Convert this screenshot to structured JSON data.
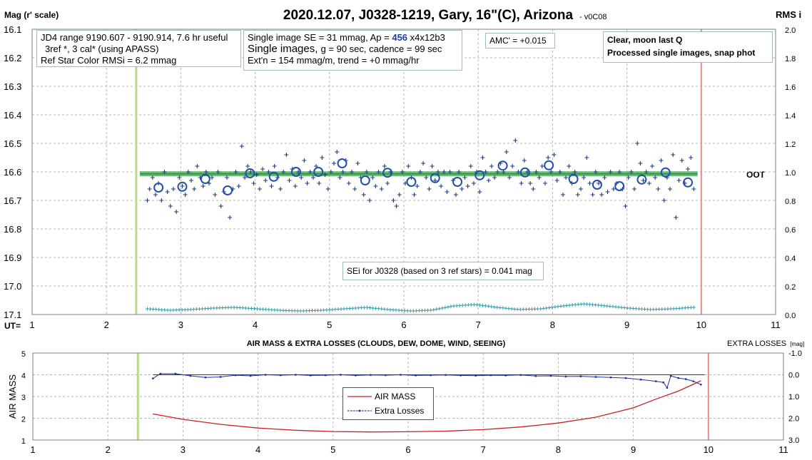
{
  "top_chart": {
    "title": "2020.12.07, J0328-1219, Gary, 16\"(C), Arizona",
    "version": "- v0C08",
    "left_axis_label": "Mag (r' scale)",
    "right_axis_label": "RMS i",
    "x_label": "UT=",
    "x_ticks": [
      "1",
      "2",
      "3",
      "4",
      "5",
      "6",
      "7",
      "8",
      "9",
      "10",
      "11"
    ],
    "y_left_ticks": [
      "16.1",
      "16.2",
      "16.3",
      "16.4",
      "16.5",
      "16.6",
      "16.7",
      "16.8",
      "16.9",
      "17.0",
      "17.1"
    ],
    "y_right_ticks": [
      "2.0",
      "1.8",
      "1.6",
      "1.4",
      "1.2",
      "1.0",
      "0.8",
      "0.6",
      "0.4",
      "0.2",
      "0.0"
    ],
    "info1": {
      "line1": "JD4 range 9190.607 - 9190.914, 7.6 hr useful",
      "line2": "3ref *, 3 cal* (using APASS)",
      "line3": "Ref Star Color RMSi = 6.2 mmag"
    },
    "info2": {
      "line1_pre": "Single image SE = 31 mmag, Ap = ",
      "line1_ap": "456",
      "line1_post": " x4x12b3",
      "line2_pre": "Single images, ",
      "line2_post": "g = 90 sec, cadence = 99 sec",
      "line3": "Ext'n = 154 mmag/m, trend = +0 mmag/hr"
    },
    "amc": "AMC' = +0.015",
    "conditions": {
      "line1": "Clear, moon last Q",
      "line2": "Processed single images, snap phot"
    },
    "sei": "SEi for J0328 (based on 3 ref stars) = 0.041 mag",
    "oot_label": "OOT"
  },
  "bottom_chart": {
    "title": "AIR MASS & EXTRA LOSSES (CLOUDS, DEW, DOME, WIND, SEEING)",
    "left_axis_label": "AIR MASS",
    "right_axis_label": "EXTRA LOSSES",
    "right_axis_unit": "[mag]",
    "x_ticks": [
      "1",
      "2",
      "3",
      "4",
      "5",
      "6",
      "7",
      "8",
      "9",
      "10",
      "11"
    ],
    "y_left_ticks": [
      "5",
      "4",
      "3",
      "2",
      "1"
    ],
    "y_right_ticks": [
      "-1.0",
      "0.0",
      "1.0",
      "2.0",
      "3.0"
    ],
    "legend": {
      "airmass": "AIR MASS",
      "extra": "Extra Losses"
    }
  },
  "colors": {
    "single_points": "#1f3a7a",
    "circles": "#1f4fb0",
    "oot_band": "#3aa64a",
    "rms_points": "#3a9aa8",
    "green_line": "#b8d88a",
    "red_line": "#e88a8a",
    "airmass_curve": "#cc1f1f",
    "extra_losses": "#1f2faa"
  },
  "chart_data": [
    {
      "type": "scatter",
      "title": "2020.12.07, J0328-1219, Gary, 16\"(C), Arizona",
      "xlabel": "UT=",
      "ylabel": "Mag (r' scale)",
      "y2label": "RMS i",
      "xlim": [
        1,
        11
      ],
      "ylim": [
        17.1,
        16.1
      ],
      "y2lim": [
        0.0,
        2.0
      ],
      "grid": true,
      "start_marker_x": 2.4,
      "end_marker_x": 10.0,
      "oot_level": 16.607,
      "oot_range": [
        2.45,
        9.95
      ],
      "binned_means": {
        "x": [
          2.7,
          3.02,
          3.33,
          3.63,
          3.93,
          4.25,
          4.55,
          4.85,
          5.17,
          5.48,
          5.78,
          6.1,
          6.42,
          6.72,
          7.02,
          7.33,
          7.63,
          7.95,
          8.28,
          8.6,
          8.9,
          9.2,
          9.52,
          9.82
        ],
        "y": [
          16.655,
          16.652,
          16.625,
          16.665,
          16.605,
          16.617,
          16.6,
          16.6,
          16.57,
          16.63,
          16.603,
          16.635,
          16.622,
          16.635,
          16.612,
          16.578,
          16.602,
          16.577,
          16.625,
          16.645,
          16.65,
          16.627,
          16.602,
          16.637
        ]
      },
      "single_images": {
        "x": [
          2.55,
          2.58,
          2.62,
          2.66,
          2.7,
          2.74,
          2.78,
          2.82,
          2.86,
          2.9,
          2.94,
          2.98,
          3.02,
          3.06,
          3.1,
          3.14,
          3.18,
          3.22,
          3.26,
          3.3,
          3.34,
          3.38,
          3.42,
          3.46,
          3.5,
          3.54,
          3.58,
          3.62,
          3.66,
          3.7,
          3.74,
          3.78,
          3.82,
          3.86,
          3.9,
          3.94,
          3.98,
          4.02,
          4.06,
          4.1,
          4.14,
          4.18,
          4.22,
          4.26,
          4.3,
          4.34,
          4.38,
          4.42,
          4.46,
          4.5,
          4.54,
          4.58,
          4.62,
          4.66,
          4.7,
          4.74,
          4.78,
          4.82,
          4.86,
          4.9,
          4.94,
          4.98,
          5.02,
          5.06,
          5.1,
          5.14,
          5.18,
          5.22,
          5.26,
          5.3,
          5.34,
          5.38,
          5.42,
          5.46,
          5.5,
          5.54,
          5.58,
          5.62,
          5.66,
          5.7,
          5.74,
          5.78,
          5.82,
          5.86,
          5.9,
          5.94,
          5.98,
          6.02,
          6.06,
          6.1,
          6.14,
          6.18,
          6.22,
          6.26,
          6.3,
          6.34,
          6.38,
          6.42,
          6.46,
          6.5,
          6.54,
          6.58,
          6.62,
          6.66,
          6.7,
          6.74,
          6.78,
          6.82,
          6.86,
          6.9,
          6.94,
          6.98,
          7.02,
          7.06,
          7.1,
          7.14,
          7.18,
          7.22,
          7.26,
          7.3,
          7.34,
          7.38,
          7.42,
          7.46,
          7.5,
          7.54,
          7.58,
          7.62,
          7.66,
          7.7,
          7.74,
          7.78,
          7.82,
          7.86,
          7.9,
          7.94,
          7.98,
          8.02,
          8.06,
          8.1,
          8.14,
          8.18,
          8.22,
          8.26,
          8.3,
          8.34,
          8.38,
          8.42,
          8.46,
          8.5,
          8.54,
          8.58,
          8.62,
          8.66,
          8.7,
          8.74,
          8.78,
          8.82,
          8.86,
          8.9,
          8.94,
          8.98,
          9.02,
          9.06,
          9.1,
          9.14,
          9.18,
          9.22,
          9.26,
          9.3,
          9.34,
          9.38,
          9.42,
          9.46,
          9.5,
          9.54,
          9.58,
          9.62,
          9.66,
          9.7,
          9.74,
          9.78,
          9.82,
          9.86,
          9.9
        ],
        "y": [
          16.7,
          16.66,
          16.62,
          16.68,
          16.64,
          16.7,
          16.6,
          16.67,
          16.72,
          16.66,
          16.74,
          16.62,
          16.65,
          16.68,
          16.6,
          16.63,
          16.66,
          16.58,
          16.62,
          16.65,
          16.6,
          16.64,
          16.62,
          16.68,
          16.6,
          16.72,
          16.67,
          16.62,
          16.76,
          16.66,
          16.6,
          16.65,
          16.51,
          16.62,
          16.58,
          16.6,
          16.64,
          16.61,
          16.66,
          16.59,
          16.63,
          16.6,
          16.65,
          16.58,
          16.62,
          16.66,
          16.6,
          16.54,
          16.63,
          16.59,
          16.65,
          16.6,
          16.62,
          16.56,
          16.64,
          16.6,
          16.62,
          16.58,
          16.64,
          16.55,
          16.61,
          16.66,
          16.6,
          16.57,
          16.53,
          16.62,
          16.6,
          16.56,
          16.64,
          16.6,
          16.66,
          16.57,
          16.62,
          16.68,
          16.6,
          16.7,
          16.62,
          16.65,
          16.6,
          16.66,
          16.58,
          16.64,
          16.6,
          16.7,
          16.72,
          16.68,
          16.6,
          16.64,
          16.58,
          16.62,
          16.68,
          16.65,
          16.6,
          16.57,
          16.62,
          16.66,
          16.58,
          16.63,
          16.6,
          16.65,
          16.6,
          16.67,
          16.6,
          16.63,
          16.68,
          16.6,
          16.66,
          16.62,
          16.65,
          16.58,
          16.64,
          16.6,
          16.67,
          16.55,
          16.6,
          16.63,
          16.58,
          16.62,
          16.6,
          16.57,
          16.6,
          16.53,
          16.62,
          16.58,
          16.49,
          16.6,
          16.64,
          16.56,
          16.6,
          16.64,
          16.66,
          16.6,
          16.62,
          16.58,
          16.64,
          16.55,
          16.6,
          16.54,
          16.63,
          16.6,
          16.68,
          16.62,
          16.58,
          16.64,
          16.6,
          16.68,
          16.66,
          16.62,
          16.55,
          16.64,
          16.68,
          16.6,
          16.64,
          16.68,
          16.62,
          16.67,
          16.6,
          16.66,
          16.64,
          16.6,
          16.66,
          16.72,
          16.62,
          16.6,
          16.66,
          16.5,
          16.57,
          16.63,
          16.6,
          16.64,
          16.58,
          16.62,
          16.66,
          16.56,
          16.7,
          16.62,
          16.66,
          16.54,
          16.76,
          16.63,
          16.56,
          16.64,
          16.59,
          16.55,
          16.66
        ]
      },
      "rms_i": {
        "x_range": [
          2.55,
          9.9
        ],
        "values": [
          0.04,
          0.03,
          0.035,
          0.045,
          0.05,
          0.04,
          0.03,
          0.025,
          0.03,
          0.04,
          0.05,
          0.035,
          0.025,
          0.03,
          0.06,
          0.07,
          0.05,
          0.035,
          0.04,
          0.06,
          0.075,
          0.06,
          0.045,
          0.035,
          0.04,
          0.05
        ]
      }
    },
    {
      "type": "line",
      "title": "AIR MASS & EXTRA LOSSES (CLOUDS, DEW, DOME, WIND, SEEING)",
      "xlabel": "",
      "ylabel": "AIR MASS",
      "y2label": "EXTRA LOSSES [mag]",
      "xlim": [
        1,
        11
      ],
      "ylim": [
        1,
        5
      ],
      "y2lim": [
        3.0,
        -1.0
      ],
      "grid": true,
      "legend": "center",
      "series": [
        {
          "name": "AIR MASS",
          "x": [
            2.6,
            3.0,
            3.5,
            4.0,
            4.5,
            5.0,
            5.5,
            6.0,
            6.5,
            7.0,
            7.5,
            8.0,
            8.5,
            9.0,
            9.3,
            9.6,
            9.9
          ],
          "values": [
            2.2,
            1.95,
            1.72,
            1.55,
            1.45,
            1.39,
            1.37,
            1.38,
            1.41,
            1.48,
            1.6,
            1.78,
            2.05,
            2.48,
            2.88,
            3.25,
            3.72
          ]
        },
        {
          "name": "Extra Losses",
          "x": [
            2.6,
            2.7,
            2.9,
            3.1,
            3.3,
            3.5,
            3.7,
            3.9,
            4.1,
            4.3,
            4.5,
            4.7,
            4.9,
            5.1,
            5.3,
            5.5,
            5.7,
            5.9,
            6.1,
            6.3,
            6.5,
            6.7,
            6.9,
            7.1,
            7.3,
            7.5,
            7.7,
            7.9,
            8.1,
            8.3,
            8.5,
            8.7,
            8.9,
            9.1,
            9.3,
            9.4,
            9.45,
            9.5,
            9.6,
            9.7,
            9.8,
            9.9
          ],
          "values": [
            0.17,
            -0.05,
            -0.05,
            0.05,
            0.12,
            0.1,
            0.02,
            0.05,
            0.0,
            0.02,
            0.0,
            0.03,
            0.02,
            0.0,
            0.03,
            0.01,
            0.02,
            0.0,
            0.03,
            0.02,
            0.01,
            0.03,
            0.04,
            0.02,
            0.03,
            0.01,
            0.06,
            0.05,
            0.08,
            0.07,
            0.1,
            0.12,
            0.15,
            0.22,
            0.3,
            0.35,
            0.6,
            0.05,
            0.15,
            0.2,
            0.3,
            0.45
          ]
        }
      ]
    }
  ]
}
